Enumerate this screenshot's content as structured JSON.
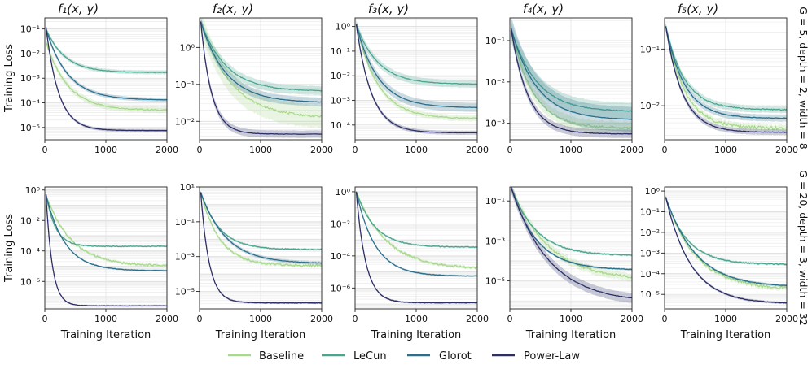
{
  "figure": {
    "titles": [
      "f₁(x, y)",
      "f₂(x, y)",
      "f₃(x, y)",
      "f₄(x, y)",
      "f₅(x, y)"
    ],
    "ylabel": "Training Loss",
    "xlabel": "Training Iteration",
    "row_labels": [
      "G = 5, depth = 2, width = 8",
      "G = 20, depth = 3, width = 32"
    ],
    "legend": [
      {
        "name": "Baseline",
        "color": "#a6d98a"
      },
      {
        "name": "LeCun",
        "color": "#4aa58f"
      },
      {
        "name": "Glorot",
        "color": "#2a6f8c"
      },
      {
        "name": "Power-Law",
        "color": "#2c2e66"
      }
    ]
  },
  "chart_data": [
    {
      "type": "line",
      "row": 0,
      "col": 0,
      "title": "f₁(x, y)",
      "ylabel": "Training Loss",
      "xlabel": "",
      "yscale": "log",
      "xlim": [
        0,
        2000
      ],
      "ylim_exp": [
        -5.5,
        -0.55
      ],
      "xticks": [
        0,
        1000,
        2000
      ],
      "yticks_exp": [
        -5,
        -4,
        -3,
        -2,
        -1
      ],
      "grid": true,
      "series": [
        {
          "name": "Baseline",
          "start": 0.03,
          "end": 5e-05,
          "k": 3.5,
          "band": 0.12
        },
        {
          "name": "LeCun",
          "start": 0.1,
          "end": 0.0017,
          "k": 4.0,
          "band": 0.08
        },
        {
          "name": "Glorot",
          "start": 0.1,
          "end": 0.00013,
          "k": 3.5,
          "band": 0.08
        },
        {
          "name": "Power-Law",
          "start": 0.12,
          "end": 7.5e-06,
          "k": 6.0,
          "band": 0.06
        }
      ]
    },
    {
      "type": "line",
      "row": 0,
      "col": 1,
      "title": "f₂(x, y)",
      "ylabel": "",
      "xlabel": "",
      "yscale": "log",
      "xlim": [
        0,
        2000
      ],
      "ylim_exp": [
        -2.5,
        0.8
      ],
      "xticks": [
        0,
        1000,
        2000
      ],
      "yticks_exp": [
        -2,
        -1,
        0
      ],
      "grid": true,
      "series": [
        {
          "name": "Baseline",
          "start": 5,
          "end": 0.012,
          "k": 2.5,
          "band": 0.3
        },
        {
          "name": "LeCun",
          "start": 5,
          "end": 0.065,
          "k": 3.0,
          "band": 0.12
        },
        {
          "name": "Glorot",
          "start": 5,
          "end": 0.032,
          "k": 3.0,
          "band": 0.12
        },
        {
          "name": "Power-Law",
          "start": 5,
          "end": 0.0045,
          "k": 7.0,
          "band": 0.1
        }
      ]
    },
    {
      "type": "line",
      "row": 0,
      "col": 2,
      "title": "f₃(x, y)",
      "ylabel": "",
      "xlabel": "",
      "yscale": "log",
      "xlim": [
        0,
        2000
      ],
      "ylim_exp": [
        -4.6,
        0.35
      ],
      "xticks": [
        0,
        1000,
        2000
      ],
      "yticks_exp": [
        -4,
        -3,
        -2,
        -1,
        0
      ],
      "grid": true,
      "series": [
        {
          "name": "Baseline",
          "start": 1.2,
          "end": 0.00018,
          "k": 3.5,
          "band": 0.12
        },
        {
          "name": "LeCun",
          "start": 1.2,
          "end": 0.0045,
          "k": 3.5,
          "band": 0.15
        },
        {
          "name": "Glorot",
          "start": 1.2,
          "end": 0.0005,
          "k": 3.5,
          "band": 0.18
        },
        {
          "name": "Power-Law",
          "start": 1.2,
          "end": 4.8e-05,
          "k": 5.0,
          "band": 0.08
        }
      ]
    },
    {
      "type": "line",
      "row": 0,
      "col": 3,
      "title": "f₄(x, y)",
      "ylabel": "",
      "xlabel": "",
      "yscale": "log",
      "xlim": [
        0,
        2000
      ],
      "ylim_exp": [
        -3.4,
        -0.45
      ],
      "xticks": [
        0,
        1000,
        2000
      ],
      "yticks_exp": [
        -3,
        -2,
        -1
      ],
      "grid": true,
      "series": [
        {
          "name": "Baseline",
          "start": 0.2,
          "end": 0.00075,
          "k": 3.5,
          "band": 0.15
        },
        {
          "name": "LeCun",
          "start": 0.2,
          "end": 0.0019,
          "k": 3.0,
          "band": 0.2
        },
        {
          "name": "Glorot",
          "start": 0.2,
          "end": 0.0012,
          "k": 3.0,
          "band": 0.3
        },
        {
          "name": "Power-Law",
          "start": 0.2,
          "end": 0.00055,
          "k": 4.5,
          "band": 0.1
        }
      ]
    },
    {
      "type": "line",
      "row": 0,
      "col": 4,
      "title": "f₅(x, y)",
      "ylabel": "",
      "xlabel": "",
      "yscale": "log",
      "xlim": [
        0,
        2000
      ],
      "ylim_exp": [
        -2.6,
        -0.45
      ],
      "xticks": [
        0,
        1000,
        2000
      ],
      "yticks_exp": [
        -2,
        -1
      ],
      "grid": true,
      "series": [
        {
          "name": "Baseline",
          "start": 0.25,
          "end": 0.004,
          "k": 4.0,
          "band": 0.06
        },
        {
          "name": "LeCun",
          "start": 0.25,
          "end": 0.0085,
          "k": 4.0,
          "band": 0.06
        },
        {
          "name": "Glorot",
          "start": 0.25,
          "end": 0.006,
          "k": 4.0,
          "band": 0.06
        },
        {
          "name": "Power-Law",
          "start": 0.25,
          "end": 0.0034,
          "k": 4.5,
          "band": 0.05
        }
      ]
    },
    {
      "type": "line",
      "row": 1,
      "col": 0,
      "title": "",
      "ylabel": "Training Loss",
      "xlabel": "Training Iteration",
      "yscale": "log",
      "xlim": [
        0,
        2000
      ],
      "ylim_exp": [
        -7.8,
        0.2
      ],
      "xticks": [
        0,
        1000,
        2000
      ],
      "yticks_exp": [
        -6,
        -4,
        -2,
        0
      ],
      "grid": true,
      "series": [
        {
          "name": "Baseline",
          "start": 0.5,
          "end": 1e-05,
          "k": 3.0,
          "band": 0.1
        },
        {
          "name": "LeCun",
          "start": 0.5,
          "end": 0.0002,
          "k": 8.0,
          "band": 0.06
        },
        {
          "name": "Glorot",
          "start": 0.5,
          "end": 5e-06,
          "k": 4.0,
          "band": 0.06
        },
        {
          "name": "Power-Law",
          "start": 0.5,
          "end": 2.5e-08,
          "k": 12.0,
          "band": 0.05
        }
      ]
    },
    {
      "type": "line",
      "row": 1,
      "col": 1,
      "title": "",
      "ylabel": "",
      "xlabel": "Training Iteration",
      "yscale": "log",
      "xlim": [
        0,
        2000
      ],
      "ylim_exp": [
        -6.0,
        1.0
      ],
      "xticks": [
        0,
        1000,
        2000
      ],
      "yticks_exp": [
        -5,
        -3,
        -1,
        1
      ],
      "grid": true,
      "series": [
        {
          "name": "Baseline",
          "start": 5,
          "end": 0.0003,
          "k": 4.0,
          "band": 0.1
        },
        {
          "name": "LeCun",
          "start": 5,
          "end": 0.0025,
          "k": 4.0,
          "band": 0.06
        },
        {
          "name": "Glorot",
          "start": 5,
          "end": 0.0004,
          "k": 3.0,
          "band": 0.1
        },
        {
          "name": "Power-Law",
          "start": 5,
          "end": 2.2e-06,
          "k": 9.0,
          "band": 0.06
        }
      ]
    },
    {
      "type": "line",
      "row": 1,
      "col": 2,
      "title": "",
      "ylabel": "",
      "xlabel": "Training Iteration",
      "yscale": "log",
      "xlim": [
        0,
        2000
      ],
      "ylim_exp": [
        -7.3,
        0.3
      ],
      "xticks": [
        0,
        1000,
        2000
      ],
      "yticks_exp": [
        -6,
        -4,
        -2,
        0
      ],
      "grid": true,
      "series": [
        {
          "name": "Baseline",
          "start": 1,
          "end": 1.5e-05,
          "k": 2.5,
          "band": 0.1
        },
        {
          "name": "LeCun",
          "start": 1,
          "end": 0.00035,
          "k": 4.0,
          "band": 0.06
        },
        {
          "name": "Glorot",
          "start": 1,
          "end": 5.5e-06,
          "k": 4.0,
          "band": 0.06
        },
        {
          "name": "Power-Law",
          "start": 1,
          "end": 1.2e-07,
          "k": 8.0,
          "band": 0.06
        }
      ]
    },
    {
      "type": "line",
      "row": 1,
      "col": 3,
      "title": "",
      "ylabel": "",
      "xlabel": "Training Iteration",
      "yscale": "log",
      "xlim": [
        0,
        2000
      ],
      "ylim_exp": [
        -6.4,
        -0.3
      ],
      "xticks": [
        0,
        1000,
        2000
      ],
      "yticks_exp": [
        -5,
        -3,
        -1
      ],
      "grid": true,
      "series": [
        {
          "name": "Baseline",
          "start": 0.5,
          "end": 1e-05,
          "k": 2.0,
          "band": 0.2
        },
        {
          "name": "LeCun",
          "start": 0.5,
          "end": 0.00018,
          "k": 3.0,
          "band": 0.06
        },
        {
          "name": "Glorot",
          "start": 0.5,
          "end": 3.5e-05,
          "k": 3.0,
          "band": 0.06
        },
        {
          "name": "Power-Law",
          "start": 0.5,
          "end": 8e-07,
          "k": 2.0,
          "band": 0.25
        }
      ]
    },
    {
      "type": "line",
      "row": 1,
      "col": 4,
      "title": "",
      "ylabel": "",
      "xlabel": "Training Iteration",
      "yscale": "log",
      "xlim": [
        0,
        2000
      ],
      "ylim_exp": [
        -5.7,
        0.2
      ],
      "xticks": [
        0,
        1000,
        2000
      ],
      "yticks_exp": [
        -5,
        -4,
        -3,
        -2,
        -1,
        0
      ],
      "grid": true,
      "series": [
        {
          "name": "Baseline",
          "start": 0.5,
          "end": 1.7e-05,
          "k": 2.5,
          "band": 0.12
        },
        {
          "name": "LeCun",
          "start": 0.5,
          "end": 0.00028,
          "k": 3.5,
          "band": 0.06
        },
        {
          "name": "Glorot",
          "start": 0.5,
          "end": 2.2e-05,
          "k": 2.5,
          "band": 0.06
        },
        {
          "name": "Power-Law",
          "start": 0.5,
          "end": 3.5e-06,
          "k": 3.0,
          "band": 0.06
        }
      ]
    }
  ]
}
